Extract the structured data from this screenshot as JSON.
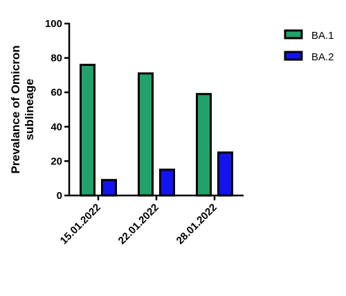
{
  "chart_data": {
    "type": "bar",
    "ylabel": [
      "Prevalance of Omicron",
      "sublineage"
    ],
    "categories": [
      "15.01.2022",
      "22.01.2022",
      "28.01.2022"
    ],
    "series": [
      {
        "name": "BA.1",
        "color": "#1fa36a",
        "values": [
          76,
          71,
          59
        ]
      },
      {
        "name": "BA.2",
        "color": "#1414f0",
        "values": [
          9,
          15,
          25
        ]
      }
    ],
    "ylim": [
      0,
      100
    ],
    "yticks": [
      0,
      20,
      40,
      60,
      80,
      100
    ],
    "grid": false
  }
}
